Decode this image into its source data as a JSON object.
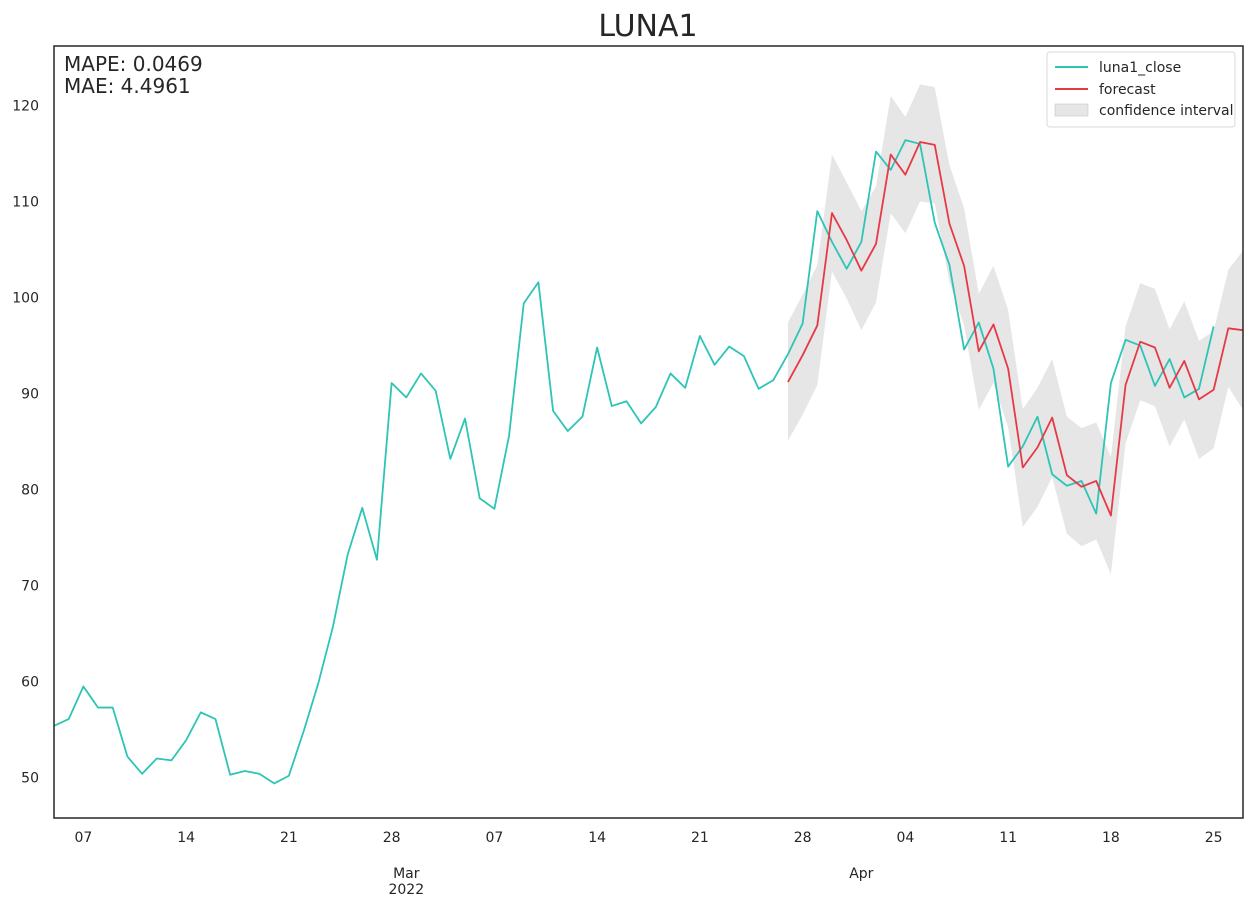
{
  "chart_data": {
    "type": "line",
    "title": "LUNA1",
    "xlabel": "",
    "ylabel": "",
    "metrics": [
      "MAPE: 0.0469",
      "MAE: 4.4961"
    ],
    "xlim": [
      "2022-02-05",
      "2022-04-27"
    ],
    "ylim": [
      45.8,
      126.2
    ],
    "yticks": [
      50,
      60,
      70,
      80,
      90,
      100,
      110,
      120
    ],
    "xticks": [
      {
        "date": "2022-02-07",
        "label": "07"
      },
      {
        "date": "2022-02-14",
        "label": "14"
      },
      {
        "date": "2022-02-21",
        "label": "21"
      },
      {
        "date": "2022-02-28",
        "label": "28"
      },
      {
        "date": "2022-03-07",
        "label": "07"
      },
      {
        "date": "2022-03-14",
        "label": "14"
      },
      {
        "date": "2022-03-21",
        "label": "21"
      },
      {
        "date": "2022-03-28",
        "label": "28"
      },
      {
        "date": "2022-04-04",
        "label": "04"
      },
      {
        "date": "2022-04-11",
        "label": "11"
      },
      {
        "date": "2022-04-18",
        "label": "18"
      },
      {
        "date": "2022-04-25",
        "label": "25"
      }
    ],
    "month_labels": [
      {
        "date": "2022-03-01",
        "label": "Mar",
        "year": "2022"
      },
      {
        "date": "2022-04-01",
        "label": "Apr",
        "year": ""
      }
    ],
    "grid": false,
    "legend_position": "top-right",
    "colors": {
      "actual": "#2ec4b6",
      "forecast": "#e63946",
      "ci": "#d6d6d6"
    },
    "series": [
      {
        "name": "luna1_close",
        "start_date": "2022-02-05",
        "values": [
          55.4,
          56.1,
          59.5,
          57.3,
          57.3,
          52.2,
          50.4,
          52.0,
          51.8,
          53.9,
          56.8,
          56.1,
          50.3,
          50.7,
          50.4,
          49.4,
          50.2,
          54.8,
          59.8,
          65.7,
          73.2,
          78.1,
          72.7,
          91.1,
          89.6,
          92.1,
          90.3,
          83.2,
          87.4,
          79.1,
          78.0,
          85.6,
          99.4,
          101.6,
          88.2,
          86.1,
          87.6,
          94.8,
          88.7,
          89.2,
          86.9,
          88.6,
          92.1,
          90.6,
          96.0,
          93.0,
          94.9,
          93.9,
          90.5,
          91.4,
          94.1,
          97.3,
          109.0,
          105.8,
          103.0,
          105.8,
          115.2,
          113.3,
          116.4,
          116.0,
          107.8,
          103.4,
          94.6,
          97.4,
          92.6,
          82.4,
          84.5,
          87.6,
          81.6,
          80.4,
          80.9,
          77.5,
          91.1,
          95.6,
          95.0,
          90.8,
          93.6,
          89.6,
          90.5,
          97.0
        ]
      },
      {
        "name": "forecast",
        "start_date": "2022-03-27",
        "values": [
          91.2,
          94.0,
          97.1,
          108.8,
          106.0,
          102.8,
          105.6,
          114.9,
          112.8,
          116.2,
          115.9,
          107.7,
          103.3,
          94.4,
          97.2,
          92.6,
          82.3,
          84.4,
          87.5,
          81.5,
          80.3,
          80.9,
          77.3,
          90.9,
          95.4,
          94.8,
          90.6,
          93.4,
          89.4,
          90.4,
          96.8,
          96.6
        ]
      }
    ],
    "confidence_interval": {
      "name": "confidence interval",
      "start_date": "2022-03-27",
      "upper": [
        97.4,
        100.3,
        103.4,
        114.9,
        112.0,
        109.0,
        111.6,
        121.0,
        118.8,
        122.2,
        121.9,
        113.8,
        109.3,
        100.4,
        103.3,
        98.7,
        88.4,
        90.6,
        93.6,
        87.6,
        86.4,
        87.0,
        83.4,
        97.0,
        101.5,
        100.9,
        96.7,
        99.6,
        95.5,
        96.5,
        102.9,
        104.9
      ],
      "lower": [
        85.1,
        87.8,
        90.9,
        102.7,
        99.9,
        96.6,
        99.5,
        108.8,
        106.7,
        110.0,
        109.8,
        101.6,
        97.1,
        88.3,
        91.1,
        86.5,
        76.1,
        78.2,
        81.3,
        75.4,
        74.1,
        74.8,
        71.2,
        84.8,
        89.3,
        88.7,
        84.5,
        87.3,
        83.2,
        84.3,
        90.7,
        88.3
      ]
    }
  }
}
